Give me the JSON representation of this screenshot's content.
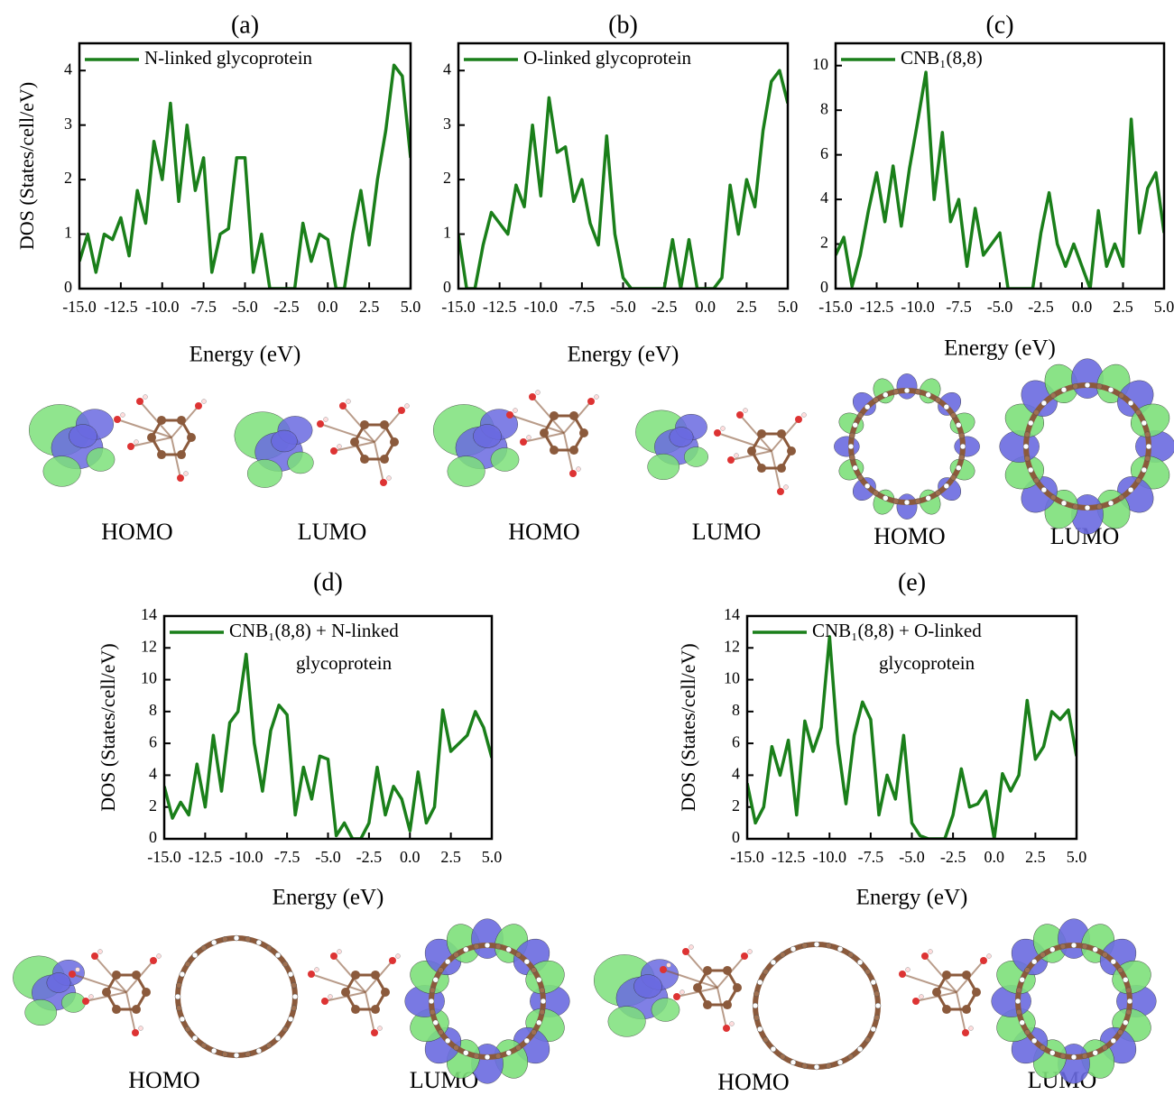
{
  "chart_data": [
    {
      "type": "line",
      "title": "(a)",
      "xlabel": "Energy (eV)",
      "ylabel": "DOS (States/cell/eV)",
      "x": [
        -15,
        -14.5,
        -14,
        -13.5,
        -13,
        -12.5,
        -12,
        -11.5,
        -11,
        -10.5,
        -10,
        -9.5,
        -9,
        -8.5,
        -8,
        -7.5,
        -7,
        -6.5,
        -6,
        -5.5,
        -5,
        -4.5,
        -4,
        -3.5,
        -3,
        -2.5,
        -2,
        -1.5,
        -1,
        -0.5,
        0,
        0.5,
        1,
        1.5,
        2,
        2.5,
        3,
        3.5,
        4,
        4.5,
        5
      ],
      "series": [
        {
          "name": "N-linked glycoprotein",
          "color": "#1a7f1a",
          "values": [
            0.5,
            1.0,
            0.3,
            1.0,
            0.9,
            1.3,
            0.6,
            1.8,
            1.2,
            2.7,
            2.0,
            3.4,
            1.6,
            3.0,
            1.8,
            2.4,
            0.3,
            1.0,
            1.1,
            2.4,
            2.4,
            0.3,
            1.0,
            0,
            0,
            0,
            0,
            1.2,
            0.5,
            1.0,
            0.9,
            0,
            0,
            1.0,
            1.8,
            0.8,
            2.0,
            2.9,
            4.1,
            3.9,
            2.4
          ]
        }
      ],
      "xlim": [
        -15,
        5
      ],
      "ylim": [
        0,
        4.5
      ],
      "xticks": [
        {
          "value": -15,
          "label": "-15.0"
        },
        -12.5,
        {
          "value": -10,
          "label": "-10.0"
        },
        -7.5,
        {
          "value": -5,
          "label": "-5.0"
        },
        -2.5,
        {
          "value": 0,
          "label": "0.0"
        },
        2.5,
        {
          "value": 5,
          "label": "5.0"
        }
      ],
      "yticks": [
        0,
        1,
        2,
        3,
        4
      ],
      "grid": false,
      "legend": "upper left"
    },
    {
      "type": "line",
      "title": "(b)",
      "xlabel": "Energy (eV)",
      "x": [
        -15,
        -14.5,
        -14,
        -13.5,
        -13,
        -12.5,
        -12,
        -11.5,
        -11,
        -10.5,
        -10,
        -9.5,
        -9,
        -8.5,
        -8,
        -7.5,
        -7,
        -6.5,
        -6,
        -5.5,
        -5,
        -4.5,
        -4,
        -3.5,
        -3,
        -2.5,
        -2,
        -1.5,
        -1,
        -0.5,
        0,
        0.5,
        1,
        1.5,
        2,
        2.5,
        3,
        3.5,
        4,
        4.5,
        5
      ],
      "series": [
        {
          "name": "O-linked glycoprotein",
          "color": "#1a7f1a",
          "values": [
            1.0,
            0,
            0,
            0.8,
            1.4,
            1.2,
            1.0,
            1.9,
            1.5,
            3.0,
            1.7,
            3.5,
            2.5,
            2.6,
            1.6,
            2.0,
            1.2,
            0.8,
            2.8,
            1.0,
            0.2,
            0,
            0,
            0,
            0,
            0,
            0.9,
            0,
            0.9,
            0,
            0,
            0,
            0.2,
            1.9,
            1.0,
            2.0,
            1.5,
            2.9,
            3.8,
            4.0,
            3.4
          ]
        }
      ],
      "xlim": [
        -15,
        5
      ],
      "ylim": [
        0,
        4.5
      ],
      "xticks": [
        {
          "value": -15,
          "label": "-15.0"
        },
        -12.5,
        {
          "value": -10,
          "label": "-10.0"
        },
        -7.5,
        {
          "value": -5,
          "label": "-5.0"
        },
        -2.5,
        {
          "value": 0,
          "label": "0.0"
        },
        2.5,
        {
          "value": 5,
          "label": "5.0"
        }
      ],
      "yticks": [
        0,
        1,
        2,
        3,
        4
      ],
      "grid": false,
      "legend": "upper left"
    },
    {
      "type": "line",
      "title": "(c)",
      "xlabel": "Energy (eV)",
      "x": [
        -15,
        -14.5,
        -14,
        -13.5,
        -13,
        -12.5,
        -12,
        -11.5,
        -11,
        -10.5,
        -10,
        -9.5,
        -9,
        -8.5,
        -8,
        -7.5,
        -7,
        -6.5,
        -6,
        -5.5,
        -5,
        -4.5,
        -4,
        -3.5,
        -3,
        -2.5,
        -2,
        -1.5,
        -1,
        -0.5,
        0,
        0.5,
        1,
        1.5,
        2,
        2.5,
        3,
        3.5,
        4,
        4.5,
        5
      ],
      "series": [
        {
          "name": "CNB₁(8,8)",
          "color": "#1a7f1a",
          "values": [
            1.5,
            2.3,
            0.1,
            1.5,
            3.5,
            5.2,
            3.0,
            5.5,
            2.8,
            5.4,
            7.5,
            9.7,
            4.0,
            7.0,
            3.0,
            4.0,
            1.0,
            3.6,
            1.5,
            2.0,
            2.5,
            0,
            0,
            0,
            0,
            2.5,
            4.3,
            2.0,
            1.0,
            2.0,
            1.0,
            0,
            3.5,
            1.0,
            2.0,
            1.0,
            7.6,
            2.5,
            4.5,
            5.2,
            2.5
          ]
        }
      ],
      "xlim": [
        -15,
        5
      ],
      "ylim": [
        0,
        11
      ],
      "xticks": [
        {
          "value": -15,
          "label": "-15.0"
        },
        -12.5,
        {
          "value": -10,
          "label": "-10.0"
        },
        -7.5,
        {
          "value": -5,
          "label": "-5.0"
        },
        -2.5,
        {
          "value": 0,
          "label": "0.0"
        },
        2.5,
        {
          "value": 5,
          "label": "5.0"
        }
      ],
      "yticks": [
        0,
        2,
        4,
        6,
        8,
        10
      ],
      "grid": false,
      "legend": "upper left"
    },
    {
      "type": "line",
      "title": "(d)",
      "xlabel": "Energy (eV)",
      "ylabel": "DOS (States/cell/eV)",
      "x": [
        -15,
        -14.5,
        -14,
        -13.5,
        -13,
        -12.5,
        -12,
        -11.5,
        -11,
        -10.5,
        -10,
        -9.5,
        -9,
        -8.5,
        -8,
        -7.5,
        -7,
        -6.5,
        -6,
        -5.5,
        -5,
        -4.5,
        -4,
        -3.5,
        -3,
        -2.5,
        -2,
        -1.5,
        -1,
        -0.5,
        0,
        0.5,
        1,
        1.5,
        2,
        2.5,
        3,
        3.5,
        4,
        4.5,
        5
      ],
      "series": [
        {
          "name": "CNB₁(8,8) + N-linked glycoprotein",
          "color": "#1a7f1a",
          "values": [
            3.3,
            1.3,
            2.3,
            1.5,
            4.7,
            2.0,
            6.5,
            3.0,
            7.3,
            8.0,
            11.6,
            6.0,
            3.0,
            6.8,
            8.4,
            7.8,
            1.5,
            4.5,
            2.5,
            5.2,
            5.0,
            0.2,
            1.0,
            0,
            0,
            1.0,
            4.5,
            1.5,
            3.3,
            2.5,
            0.5,
            4.2,
            1.0,
            2.0,
            8.1,
            5.5,
            6.0,
            6.5,
            8.0,
            7.0,
            5.1
          ]
        }
      ],
      "xlim": [
        -15,
        5
      ],
      "ylim": [
        0,
        14
      ],
      "xticks": [
        {
          "value": -15,
          "label": "-15.0"
        },
        -12.5,
        {
          "value": -10,
          "label": "-10.0"
        },
        -7.5,
        {
          "value": -5,
          "label": "-5.0"
        },
        -2.5,
        {
          "value": 0,
          "label": "0.0"
        },
        2.5,
        {
          "value": 5,
          "label": "5.0"
        }
      ],
      "yticks": [
        0,
        2,
        4,
        6,
        8,
        10,
        12,
        14
      ],
      "grid": false,
      "legend": "upper left"
    },
    {
      "type": "line",
      "title": "(e)",
      "xlabel": "Energy (eV)",
      "ylabel": "DOS (States/cell/eV)",
      "x": [
        -15,
        -14.5,
        -14,
        -13.5,
        -13,
        -12.5,
        -12,
        -11.5,
        -11,
        -10.5,
        -10,
        -9.5,
        -9,
        -8.5,
        -8,
        -7.5,
        -7,
        -6.5,
        -6,
        -5.5,
        -5,
        -4.5,
        -4,
        -3.5,
        -3,
        -2.5,
        -2,
        -1.5,
        -1,
        -0.5,
        0,
        0.5,
        1,
        1.5,
        2,
        2.5,
        3,
        3.5,
        4,
        4.5,
        5
      ],
      "series": [
        {
          "name": "CNB₁(8,8) + O-linked glycoprotein",
          "color": "#1a7f1a",
          "values": [
            3.5,
            1.0,
            2.0,
            5.8,
            4.0,
            6.2,
            1.5,
            7.4,
            5.5,
            7.0,
            12.7,
            6.0,
            2.2,
            6.5,
            8.6,
            7.5,
            1.5,
            4.0,
            2.5,
            6.5,
            1.0,
            0.2,
            0,
            0,
            0,
            1.5,
            4.4,
            2.0,
            2.2,
            3.0,
            0,
            4.1,
            3.0,
            4.0,
            8.7,
            5.0,
            5.8,
            8.0,
            7.5,
            8.1,
            5.2
          ]
        }
      ],
      "xlim": [
        -15,
        5
      ],
      "ylim": [
        0,
        14
      ],
      "xticks": [
        {
          "value": -15,
          "label": "-15.0"
        },
        -12.5,
        {
          "value": -10,
          "label": "-10.0"
        },
        -7.5,
        {
          "value": -5,
          "label": "-5.0"
        },
        -2.5,
        {
          "value": 0,
          "label": "0.0"
        },
        2.5,
        {
          "value": 5,
          "label": "5.0"
        }
      ],
      "yticks": [
        0,
        2,
        4,
        6,
        8,
        10,
        12,
        14
      ],
      "grid": false,
      "legend": "upper left"
    }
  ],
  "orbital_labels": [
    [
      "HOMO",
      "LUMO"
    ],
    [
      "HOMO",
      "LUMO"
    ],
    [
      "HOMO",
      "LUMO"
    ],
    [
      "HOMO",
      "LUMO"
    ],
    [
      "HOMO",
      "LUMO"
    ]
  ]
}
